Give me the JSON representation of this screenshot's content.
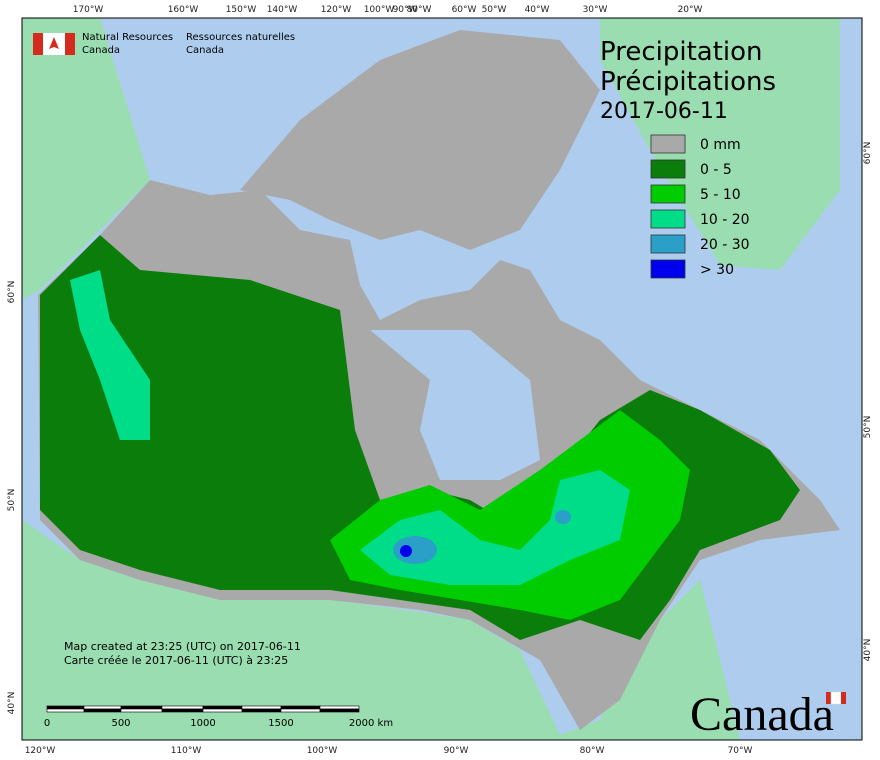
{
  "header": {
    "department_en": [
      "Natural Resources",
      "Canada"
    ],
    "department_fr": [
      "Ressources naturelles",
      "Canada"
    ]
  },
  "title": [
    "Precipitation",
    "Précipitations"
  ],
  "date": "2017-06-11",
  "legend": [
    {
      "label": "0 mm",
      "color": "#a9a9a9"
    },
    {
      "label": "0 - 5",
      "color": "#0b7d0b"
    },
    {
      "label": "5 - 10",
      "color": "#00cc00"
    },
    {
      "label": "10 - 20",
      "color": "#00dd88"
    },
    {
      "label": "20 - 30",
      "color": "#2aa0c8"
    },
    {
      "label": "> 30",
      "color": "#0000ee"
    }
  ],
  "graticule": {
    "top": [
      "170°W",
      "160°W",
      "150°W",
      "140°W",
      "120°W",
      "100°W",
      "90°W",
      "80°W",
      "60°W",
      "50°W",
      "40°W",
      "30°W",
      "20°W"
    ],
    "bottom": [
      "120°W",
      "110°W",
      "100°W",
      "90°W",
      "80°W",
      "70°W"
    ],
    "left": [
      "60°N",
      "50°N",
      "40°N"
    ],
    "right": [
      "60°N",
      "50°N",
      "40°N"
    ]
  },
  "scale_bar": [
    "0",
    "500",
    "1000",
    "1500",
    "2000  km"
  ],
  "credits": [
    "Map created at 23:25 (UTC) on 2017-06-11",
    "Carte créée le 2017-06-11 (UTC) à 23:25"
  ],
  "wordmark": "Canada"
}
